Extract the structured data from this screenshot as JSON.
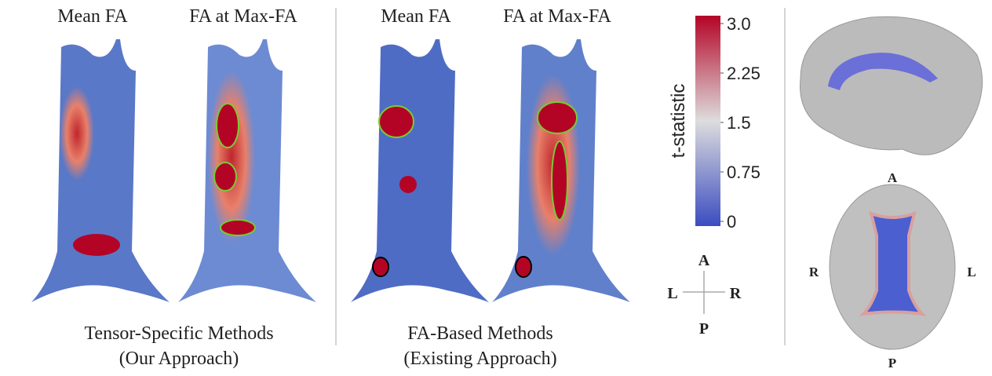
{
  "groups": [
    {
      "panels": [
        {
          "title": "Mean FA"
        },
        {
          "title": "FA at Max-FA"
        }
      ],
      "caption": [
        "Tensor-Specific Methods",
        "(Our Approach)"
      ]
    },
    {
      "panels": [
        {
          "title": "Mean FA"
        },
        {
          "title": "FA at Max-FA"
        }
      ],
      "caption": [
        "FA-Based Methods",
        "(Existing Approach)"
      ]
    }
  ],
  "colorbar": {
    "label": "t-statistic",
    "range": [
      0,
      3
    ],
    "ticks": [
      0,
      0.75,
      1.5,
      2.25,
      {
        "value": 3,
        "label": "3.0"
      }
    ]
  },
  "orientation": {
    "up": "A",
    "down": "P",
    "left": "L",
    "right": "R"
  },
  "brain": {
    "top": "A",
    "bottom": "P",
    "left": "R",
    "right": "L"
  }
}
